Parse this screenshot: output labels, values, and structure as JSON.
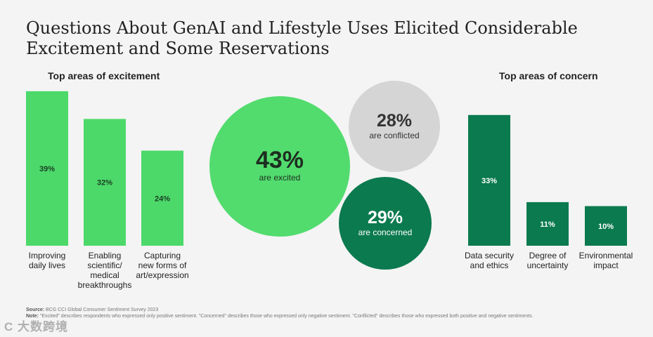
{
  "title": "Questions About GenAI and Lifestyle Uses Elicited Considerable Excitement and Some Reservations",
  "colors": {
    "excitement": "#4cd96a",
    "concern": "#0b7a4f",
    "conflicted": "#d5d5d5",
    "excited_bubble": "#52dc6e",
    "concerned_bubble": "#0b7a4f"
  },
  "chart_data": [
    {
      "type": "bar",
      "title": "Top areas of excitement",
      "categories": [
        "Improving daily lives",
        "Enabling scientific/ medical breakthroughs",
        "Capturing new forms of art/expression"
      ],
      "category_lines": [
        [
          "Improving",
          "daily lives"
        ],
        [
          "Enabling",
          "scientific/",
          "medical",
          "breakthroughs"
        ],
        [
          "Capturing",
          "new forms of",
          "art/expression"
        ]
      ],
      "values": [
        39,
        32,
        24
      ],
      "value_labels": [
        "39%",
        "32%",
        "24%"
      ],
      "ylim": [
        0,
        40
      ],
      "color": "#4cd96a",
      "grid": false
    },
    {
      "type": "bubble",
      "bubbles": [
        {
          "value": 43,
          "pct": "43%",
          "label": "are excited",
          "color": "#52dc6e"
        },
        {
          "value": 28,
          "pct": "28%",
          "label": "are conflicted",
          "color": "#d5d5d5"
        },
        {
          "value": 29,
          "pct": "29%",
          "label": "are concerned",
          "color": "#0b7a4f"
        }
      ]
    },
    {
      "type": "bar",
      "title": "Top areas of concern",
      "categories": [
        "Data security and ethics",
        "Degree of uncertainty",
        "Environmental impact"
      ],
      "category_lines": [
        [
          "Data security",
          "and ethics"
        ],
        [
          "Degree of",
          "uncertainty"
        ],
        [
          "Environmental",
          "impact"
        ]
      ],
      "values": [
        33,
        11,
        10
      ],
      "value_labels": [
        "33%",
        "11%",
        "10%"
      ],
      "ylim": [
        0,
        40
      ],
      "color": "#0b7a4f",
      "grid": false
    }
  ],
  "footer": {
    "source_label": "Source:",
    "source_text": "BCG CCI Global Consumer Sentiment Survey 2023",
    "note_label": "Note:",
    "note_text": "\"Excited\" describes respondents who expressed only positive sentiment. \"Concerned\" describes those who expressed only negative sentiment. \"Conflicted\" describes those who expressed both positive and negative sentiments."
  },
  "watermark": "C 大数跨境"
}
